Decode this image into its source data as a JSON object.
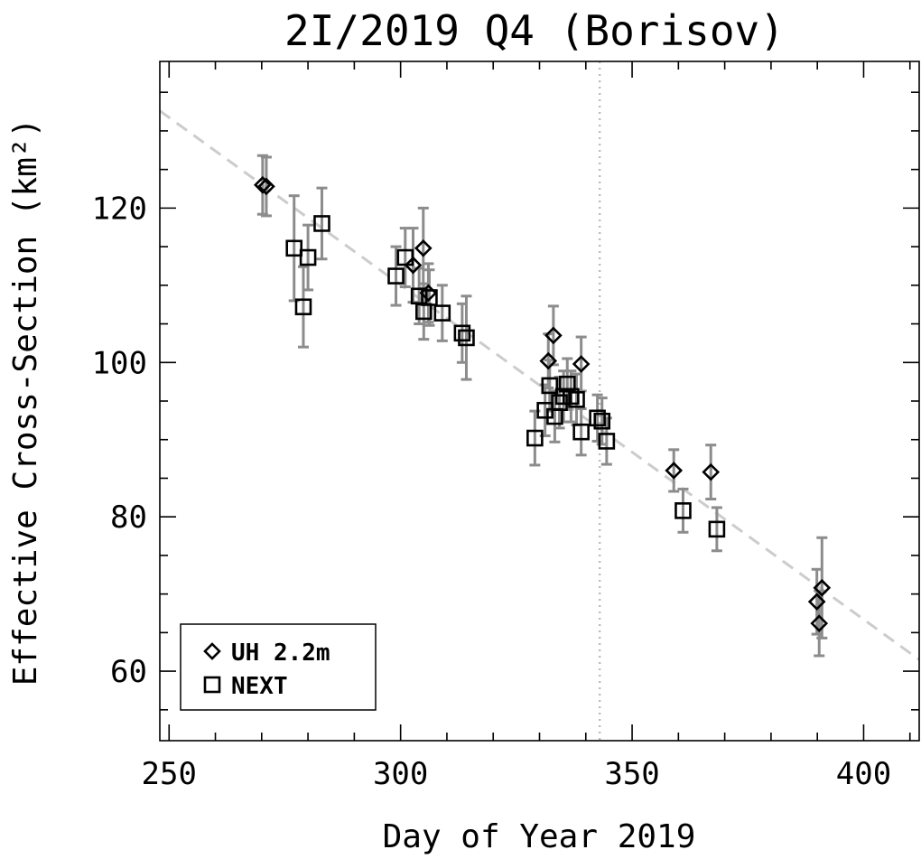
{
  "chart_data": {
    "type": "scatter",
    "title": "2I/2019 Q4 (Borisov)",
    "xlabel": "Day of Year 2019",
    "ylabel": "Effective Cross-Section (km²)",
    "xlim": [
      248,
      412
    ],
    "ylim": [
      51,
      139
    ],
    "xticks": [
      250,
      300,
      350,
      400
    ],
    "yticks": [
      60,
      80,
      100,
      120
    ],
    "legend_position": "bottom-left",
    "series": [
      {
        "name": "UH 2.2m",
        "marker": "diamond",
        "points": [
          {
            "x": 270.2,
            "y": 123.0,
            "err": 3.8
          },
          {
            "x": 271.0,
            "y": 122.8,
            "err": 3.8
          },
          {
            "x": 302.7,
            "y": 112.6,
            "err": 4.8
          },
          {
            "x": 304.9,
            "y": 114.8,
            "err": 5.2
          },
          {
            "x": 306.0,
            "y": 109.0,
            "err": 3.8
          },
          {
            "x": 331.9,
            "y": 100.2,
            "err": 3.5
          },
          {
            "x": 333.0,
            "y": 103.5,
            "err": 3.8
          },
          {
            "x": 339.0,
            "y": 99.8,
            "err": 3.5
          },
          {
            "x": 359.0,
            "y": 86.0,
            "err": 2.7
          },
          {
            "x": 367.0,
            "y": 85.8,
            "err": 3.5
          },
          {
            "x": 389.9,
            "y": 69.0,
            "err": 4.2
          },
          {
            "x": 390.4,
            "y": 66.2,
            "err": 4.2
          },
          {
            "x": 391.0,
            "y": 70.8,
            "err": 6.5
          }
        ]
      },
      {
        "name": "NEXT",
        "marker": "square",
        "points": [
          {
            "x": 277.0,
            "y": 114.8,
            "err": 6.8
          },
          {
            "x": 279.0,
            "y": 107.2,
            "err": 5.2
          },
          {
            "x": 280.0,
            "y": 113.6,
            "err": 4.2
          },
          {
            "x": 283.0,
            "y": 118.0,
            "err": 4.6
          },
          {
            "x": 299.0,
            "y": 111.2,
            "err": 3.8
          },
          {
            "x": 301.0,
            "y": 113.6,
            "err": 3.8
          },
          {
            "x": 304.0,
            "y": 108.6,
            "err": 3.6
          },
          {
            "x": 305.0,
            "y": 106.6,
            "err": 3.6
          },
          {
            "x": 306.2,
            "y": 108.4,
            "err": 3.6
          },
          {
            "x": 309.0,
            "y": 106.4,
            "err": 3.6
          },
          {
            "x": 313.3,
            "y": 103.8,
            "err": 3.8
          },
          {
            "x": 314.2,
            "y": 103.2,
            "err": 5.4
          },
          {
            "x": 329.0,
            "y": 90.2,
            "err": 3.5
          },
          {
            "x": 331.2,
            "y": 93.8,
            "err": 3.3
          },
          {
            "x": 332.2,
            "y": 97.0,
            "err": 3.3
          },
          {
            "x": 333.3,
            "y": 93.0,
            "err": 3.3
          },
          {
            "x": 334.3,
            "y": 94.8,
            "err": 3.3
          },
          {
            "x": 335.2,
            "y": 95.6,
            "err": 3.3
          },
          {
            "x": 336.0,
            "y": 97.2,
            "err": 3.3
          },
          {
            "x": 336.8,
            "y": 95.6,
            "err": 3.3
          },
          {
            "x": 338.0,
            "y": 95.2,
            "err": 3.3
          },
          {
            "x": 339.0,
            "y": 91.0,
            "err": 3.0
          },
          {
            "x": 342.5,
            "y": 92.8,
            "err": 3.0
          },
          {
            "x": 343.5,
            "y": 92.4,
            "err": 3.0
          },
          {
            "x": 344.5,
            "y": 89.8,
            "err": 3.0
          },
          {
            "x": 361.0,
            "y": 80.8,
            "err": 2.8
          },
          {
            "x": 368.3,
            "y": 78.4,
            "err": 2.8
          }
        ]
      }
    ],
    "fit_line": {
      "style": "dashed",
      "color": "#cccccc",
      "x": [
        248,
        412
      ],
      "y": [
        132.6,
        61.5
      ]
    },
    "vertical_marker": {
      "style": "dotted",
      "color": "#cccccc",
      "x": 343.0
    }
  },
  "colors": {
    "axis": "#000000",
    "errorbar": "#8c8c8c",
    "marker": "#000000",
    "fit": "#cccccc",
    "vline": "#bdbdbd"
  }
}
